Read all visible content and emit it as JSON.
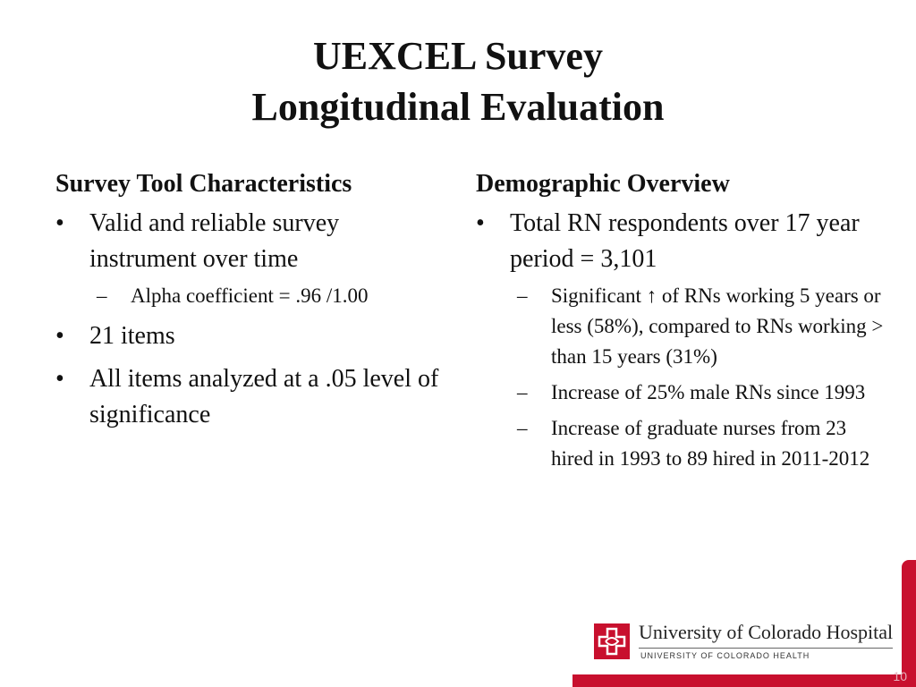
{
  "slide": {
    "title_line1": "UEXCEL Survey",
    "title_line2": "Longitudinal Evaluation",
    "page_number": "10"
  },
  "left": {
    "heading": "Survey Tool Characteristics",
    "bullets": [
      {
        "text": "Valid and reliable survey instrument over time",
        "sub": [
          "Alpha coefficient = .96 /1.00"
        ]
      },
      {
        "text": "21 items",
        "sub": []
      },
      {
        "text": "All items analyzed at a .05 level of significance",
        "sub": []
      }
    ]
  },
  "right": {
    "heading": "Demographic Overview",
    "bullets": [
      {
        "text": "Total RN respondents over 17 year period = 3,101",
        "sub": [
          "Significant ↑ of RNs working 5 years or less (58%), compared to RNs working > than 15 years (31%)",
          "Increase of 25% male RNs since 1993",
          "Increase of graduate nurses from 23 hired in 1993 to 89 hired in 2011-2012"
        ]
      }
    ]
  },
  "logo": {
    "name": "University of Colorado Hospital",
    "subtitle": "UNIVERSITY OF COLORADO HEALTH",
    "icon": "cross-logo-icon"
  },
  "bullet_glyph": "•",
  "sub_bullet_glyph": "–",
  "colors": {
    "brand_red": "#c8102e"
  }
}
